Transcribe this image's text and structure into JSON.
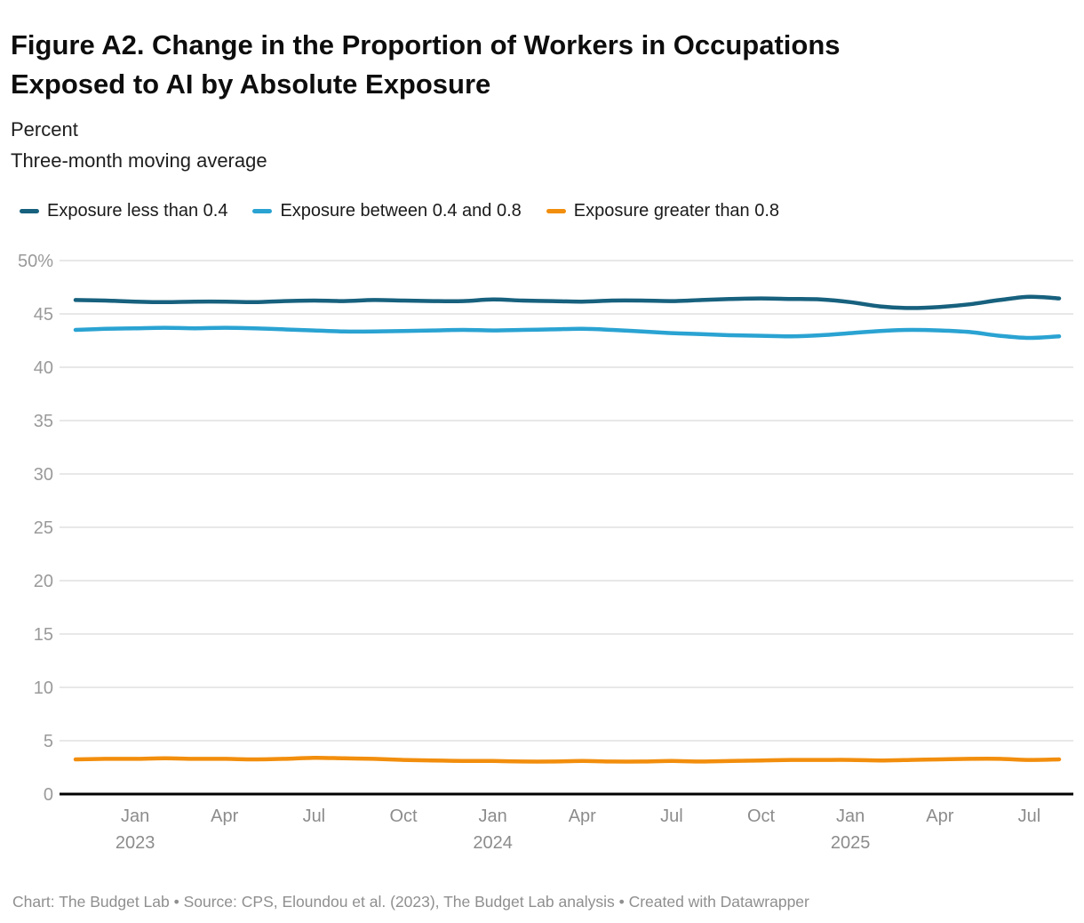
{
  "header": {
    "title": "Figure A2. Change in the Proportion of Workers in Occupations Exposed to AI by Absolute Exposure",
    "subtitle_line1": "Percent",
    "subtitle_line2": "Three-month moving average"
  },
  "footer": {
    "text": "Chart: The Budget Lab • Source: CPS, Eloundou et al. (2023), The Budget Lab analysis • Created with Datawrapper"
  },
  "colors": {
    "grid": "#e8e8e8",
    "baseline": "#000000",
    "axis_text": "#9a9a9a"
  },
  "chart_data": {
    "type": "line",
    "title": "Figure A2. Change in the Proportion of Workers in Occupations Exposed to AI by Absolute Exposure",
    "subtitle": "Percent — Three-month moving average",
    "ylim": [
      0,
      50
    ],
    "grid": "horizontal",
    "legend_position": "top",
    "yticks": [
      {
        "value": 0,
        "label": "0"
      },
      {
        "value": 5,
        "label": "5"
      },
      {
        "value": 10,
        "label": "10"
      },
      {
        "value": 15,
        "label": "15"
      },
      {
        "value": 20,
        "label": "20"
      },
      {
        "value": 25,
        "label": "25"
      },
      {
        "value": 30,
        "label": "30"
      },
      {
        "value": 35,
        "label": "35"
      },
      {
        "value": 40,
        "label": "40"
      },
      {
        "value": 45,
        "label": "45"
      },
      {
        "value": 50,
        "label": "50%"
      }
    ],
    "x": [
      "Nov 2022",
      "Dec 2022",
      "Jan 2023",
      "Feb 2023",
      "Mar 2023",
      "Apr 2023",
      "May 2023",
      "Jun 2023",
      "Jul 2023",
      "Aug 2023",
      "Sep 2023",
      "Oct 2023",
      "Nov 2023",
      "Dec 2023",
      "Jan 2024",
      "Feb 2024",
      "Mar 2024",
      "Apr 2024",
      "May 2024",
      "Jun 2024",
      "Jul 2024",
      "Aug 2024",
      "Sep 2024",
      "Oct 2024",
      "Nov 2024",
      "Dec 2024",
      "Jan 2025",
      "Feb 2025",
      "Mar 2025",
      "Apr 2025",
      "May 2025",
      "Jun 2025",
      "Jul 2025",
      "Aug 2025"
    ],
    "xticks": [
      {
        "index": 2,
        "label": "Jan",
        "year": "2023"
      },
      {
        "index": 5,
        "label": "Apr",
        "year": ""
      },
      {
        "index": 8,
        "label": "Jul",
        "year": ""
      },
      {
        "index": 11,
        "label": "Oct",
        "year": ""
      },
      {
        "index": 14,
        "label": "Jan",
        "year": "2024"
      },
      {
        "index": 17,
        "label": "Apr",
        "year": ""
      },
      {
        "index": 20,
        "label": "Jul",
        "year": ""
      },
      {
        "index": 23,
        "label": "Oct",
        "year": ""
      },
      {
        "index": 26,
        "label": "Jan",
        "year": "2025"
      },
      {
        "index": 29,
        "label": "Apr",
        "year": ""
      },
      {
        "index": 32,
        "label": "Jul",
        "year": ""
      }
    ],
    "series": [
      {
        "name": "Exposure less than 0.4",
        "color": "#17617E",
        "values": [
          46.3,
          46.25,
          46.15,
          46.1,
          46.15,
          46.15,
          46.1,
          46.2,
          46.25,
          46.2,
          46.3,
          46.25,
          46.2,
          46.2,
          46.35,
          46.25,
          46.2,
          46.15,
          46.25,
          46.25,
          46.2,
          46.3,
          46.4,
          46.45,
          46.4,
          46.35,
          46.1,
          45.7,
          45.55,
          45.65,
          45.9,
          46.3,
          46.6,
          46.45
        ]
      },
      {
        "name": "Exposure between 0.4 and 0.8",
        "color": "#2AA3D2",
        "values": [
          43.5,
          43.6,
          43.65,
          43.7,
          43.65,
          43.7,
          43.65,
          43.55,
          43.45,
          43.35,
          43.35,
          43.4,
          43.45,
          43.5,
          43.45,
          43.5,
          43.55,
          43.6,
          43.5,
          43.35,
          43.2,
          43.1,
          43.0,
          42.95,
          42.9,
          43.0,
          43.2,
          43.4,
          43.5,
          43.45,
          43.3,
          42.95,
          42.75,
          42.9
        ]
      },
      {
        "name": "Exposure greater than 0.8",
        "color": "#F28E0D",
        "values": [
          3.25,
          3.3,
          3.3,
          3.35,
          3.3,
          3.3,
          3.25,
          3.3,
          3.4,
          3.35,
          3.3,
          3.2,
          3.15,
          3.1,
          3.1,
          3.05,
          3.05,
          3.1,
          3.05,
          3.05,
          3.1,
          3.05,
          3.1,
          3.15,
          3.2,
          3.2,
          3.2,
          3.15,
          3.2,
          3.25,
          3.3,
          3.3,
          3.2,
          3.25
        ]
      }
    ]
  }
}
